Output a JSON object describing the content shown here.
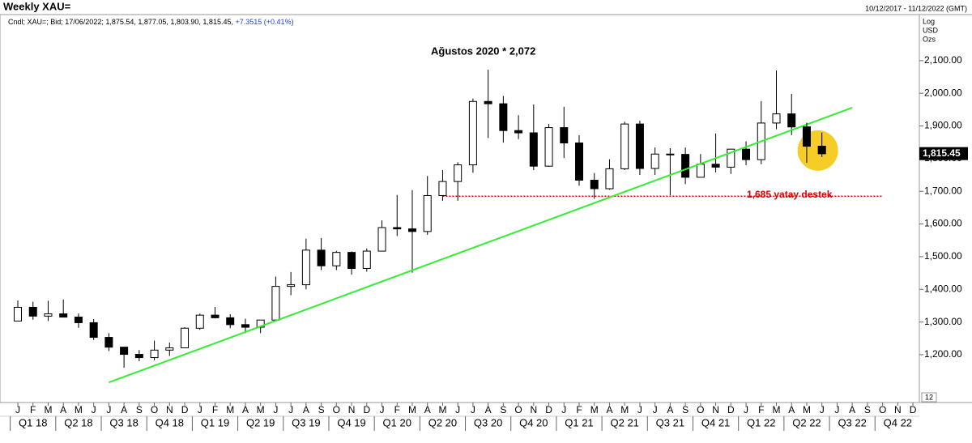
{
  "chart_data": {
    "type": "candlestick",
    "title": "Weekly XAU=",
    "date_range": "10/12/2017 - 11/12/2022 (GMT)",
    "info": "Cndl; XAU=; Bid; 17/06/2022; 1,875.54, 1,877.05, 1,803.90, 1,815.45,",
    "info_change": "+7.3515",
    "info_pct": "(+0.41%)",
    "scale_labels": [
      "Log",
      "USD",
      "Ozs"
    ],
    "annotation": "Ağustos 2020 * 2,072",
    "support_label": "1,685 yatay destek",
    "corner_label": "12",
    "last_price": {
      "value": 1815.45,
      "label": "1,815.45"
    },
    "categories": [
      "2018-01",
      "2018-02",
      "2018-03",
      "2018-04",
      "2018-05",
      "2018-06",
      "2018-07",
      "2018-08",
      "2018-09",
      "2018-10",
      "2018-11",
      "2018-12",
      "2019-01",
      "2019-02",
      "2019-03",
      "2019-04",
      "2019-05",
      "2019-06",
      "2019-07",
      "2019-08",
      "2019-09",
      "2019-10",
      "2019-11",
      "2019-12",
      "2020-01",
      "2020-02",
      "2020-03",
      "2020-04",
      "2020-05",
      "2020-06",
      "2020-07",
      "2020-08",
      "2020-09",
      "2020-10",
      "2020-11",
      "2020-12",
      "2021-01",
      "2021-02",
      "2021-03",
      "2021-04",
      "2021-05",
      "2021-06",
      "2021-07",
      "2021-08",
      "2021-09",
      "2021-10",
      "2021-11",
      "2021-12",
      "2022-01",
      "2022-02",
      "2022-03",
      "2022-04",
      "2022-05",
      "2022-06",
      "2022-07",
      "2022-08",
      "2022-09",
      "2022-10",
      "2022-11",
      "2022-12"
    ],
    "month_labels": [
      "J",
      "F",
      "M",
      "A",
      "M",
      "J",
      "J",
      "A",
      "S",
      "O",
      "N",
      "D",
      "J",
      "F",
      "M",
      "A",
      "M",
      "J",
      "J",
      "A",
      "S",
      "O",
      "N",
      "D",
      "J",
      "F",
      "M",
      "A",
      "M",
      "J",
      "J",
      "A",
      "S",
      "O",
      "N",
      "D",
      "J",
      "F",
      "M",
      "A",
      "M",
      "J",
      "J",
      "A",
      "S",
      "O",
      "N",
      "D",
      "J",
      "F",
      "M",
      "A",
      "M",
      "J",
      "J",
      "A",
      "S",
      "O",
      "N",
      "D"
    ],
    "quarter_labels": [
      "Q1 18",
      "Q2 18",
      "Q3 18",
      "Q4 18",
      "Q1 19",
      "Q2 19",
      "Q3 19",
      "Q4 19",
      "Q1 20",
      "Q2 20",
      "Q3 20",
      "Q4 20",
      "Q1 21",
      "Q2 21",
      "Q3 21",
      "Q4 21",
      "Q1 22",
      "Q2 22",
      "Q3 22",
      "Q4 22"
    ],
    "open": [
      1303,
      1345,
      1318,
      1325,
      1315,
      1298,
      1253,
      1223,
      1201,
      1191,
      1214,
      1221,
      1281,
      1321,
      1313,
      1292,
      1284,
      1306,
      1409,
      1414,
      1520,
      1472,
      1513,
      1464,
      1517,
      1589,
      1585,
      1577,
      1687,
      1730,
      1781,
      1975,
      1968,
      1886,
      1879,
      1777,
      1895,
      1848,
      1734,
      1708,
      1769,
      1906,
      1770,
      1814,
      1813,
      1743,
      1783,
      1774,
      1829,
      1797,
      1909,
      1937,
      1897,
      1838,
      null,
      null,
      null,
      null,
      null,
      null
    ],
    "high": [
      1366,
      1362,
      1365,
      1369,
      1326,
      1309,
      1266,
      1223,
      1214,
      1243,
      1237,
      1284,
      1326,
      1346,
      1324,
      1310,
      1306,
      1439,
      1453,
      1555,
      1557,
      1518,
      1516,
      1525,
      1611,
      1689,
      1704,
      1747,
      1765,
      1789,
      1984,
      2072,
      1992,
      1933,
      1966,
      1906,
      1959,
      1872,
      1756,
      1798,
      1913,
      1916,
      1834,
      1832,
      1834,
      1814,
      1877,
      1830,
      1853,
      1976,
      2070,
      1998,
      1910,
      1880,
      null,
      null,
      null,
      null,
      null,
      null
    ],
    "low": [
      1303,
      1307,
      1303,
      1315,
      1282,
      1245,
      1211,
      1160,
      1180,
      1183,
      1196,
      1221,
      1276,
      1311,
      1281,
      1266,
      1266,
      1306,
      1382,
      1400,
      1459,
      1459,
      1445,
      1454,
      1517,
      1563,
      1451,
      1567,
      1671,
      1671,
      1757,
      1863,
      1849,
      1860,
      1765,
      1775,
      1802,
      1717,
      1677,
      1705,
      1765,
      1750,
      1750,
      1688,
      1722,
      1746,
      1758,
      1753,
      1780,
      1783,
      1890,
      1872,
      1787,
      1805,
      null,
      null,
      null,
      null,
      null,
      null
    ],
    "close": [
      1345,
      1318,
      1325,
      1315,
      1298,
      1253,
      1223,
      1201,
      1191,
      1214,
      1221,
      1281,
      1321,
      1313,
      1292,
      1284,
      1306,
      1409,
      1414,
      1520,
      1472,
      1513,
      1464,
      1517,
      1589,
      1585,
      1577,
      1687,
      1730,
      1781,
      1975,
      1968,
      1886,
      1879,
      1777,
      1895,
      1848,
      1734,
      1708,
      1769,
      1906,
      1770,
      1814,
      1813,
      1743,
      1783,
      1774,
      1829,
      1797,
      1909,
      1937,
      1897,
      1838,
      1815,
      null,
      null,
      null,
      null,
      null,
      null
    ],
    "ylim": [
      1066,
      2236
    ],
    "yticks": [
      {
        "value": 1200,
        "label": "1,200.00"
      },
      {
        "value": 1300,
        "label": "1,300.00"
      },
      {
        "value": 1400,
        "label": "1,400.00"
      },
      {
        "value": 1500,
        "label": "1,500.00"
      },
      {
        "value": 1600,
        "label": "1,600.00"
      },
      {
        "value": 1700,
        "label": "1,700.00"
      },
      {
        "value": 1800,
        "label": "1,800.00"
      },
      {
        "value": 1900,
        "label": "1,900.00"
      },
      {
        "value": 2000,
        "label": "2,000.00"
      },
      {
        "value": 2100,
        "label": "2,100.00"
      }
    ],
    "trend_line": {
      "x": [
        "2018-07",
        "2022-08"
      ],
      "y": [
        1115,
        1956
      ],
      "color": "#33ee33"
    },
    "support_line": {
      "x": [
        "2020-05",
        "2022-10"
      ],
      "y": 1685,
      "color": "#dd0000"
    }
  }
}
